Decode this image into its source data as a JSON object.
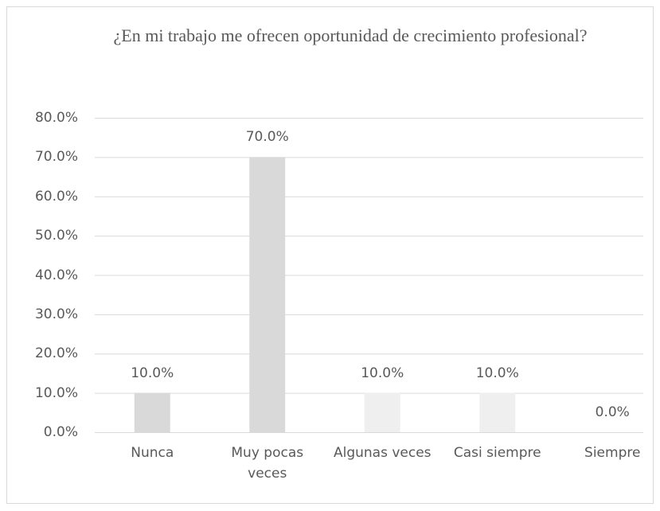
{
  "chart_data": {
    "type": "bar",
    "title": "¿En mi trabajo me ofrecen oportunidad de crecimiento profesional?",
    "categories": [
      "Nunca",
      "Muy pocas veces",
      "Algunas veces",
      "Casi siempre",
      "Siempre"
    ],
    "values": [
      10,
      70,
      10,
      10,
      0
    ],
    "value_labels": [
      "10.0%",
      "70.0%",
      "10.0%",
      "10.0%",
      "0.0%"
    ],
    "colors": [
      "#d9d9d9",
      "#d9d9d9",
      "#efefef",
      "#efefef",
      "#efefef"
    ],
    "ylim": [
      0,
      80
    ],
    "yticks": [
      {
        "value": 0,
        "label": "0.0%"
      },
      {
        "value": 10,
        "label": "10.0%"
      },
      {
        "value": 20,
        "label": "20.0%"
      },
      {
        "value": 30,
        "label": "30.0%"
      },
      {
        "value": 40,
        "label": "40.0%"
      },
      {
        "value": 50,
        "label": "50.0%"
      },
      {
        "value": 60,
        "label": "60.0%"
      },
      {
        "value": 70,
        "label": "70.0%"
      },
      {
        "value": 80,
        "label": "80.0%"
      }
    ],
    "grid": true
  }
}
